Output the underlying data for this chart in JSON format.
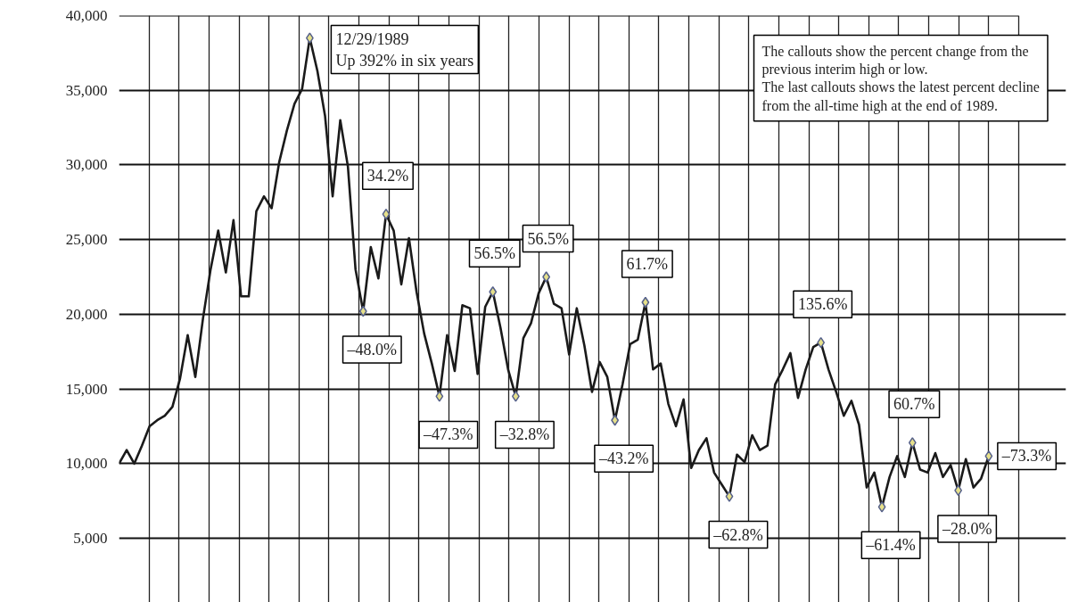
{
  "chart_data": {
    "type": "line",
    "categories": [
      null,
      null,
      null,
      null,
      null,
      null,
      null,
      null,
      null,
      null,
      null,
      null,
      null,
      null,
      null,
      null,
      null,
      null,
      null,
      null,
      null,
      null,
      null,
      null,
      null,
      null,
      null,
      null,
      null,
      null,
      null,
      null,
      null,
      null,
      null,
      null,
      null,
      null,
      null,
      null,
      null,
      null,
      null,
      null,
      null,
      null,
      null,
      null,
      null,
      null,
      null,
      null,
      null,
      null,
      null,
      null,
      null,
      null,
      null,
      null,
      null,
      null,
      null,
      null,
      null,
      null,
      null,
      null,
      null,
      null,
      null,
      null,
      null,
      null,
      null,
      null,
      null,
      null,
      null,
      null,
      null,
      null,
      null,
      null,
      null,
      null,
      null,
      null,
      null,
      null,
      null,
      null,
      null,
      null,
      null,
      null,
      null,
      null,
      null,
      null,
      null,
      null,
      null,
      null,
      null,
      null,
      null,
      null,
      null,
      null,
      null,
      null,
      null,
      null,
      null
    ],
    "series": [
      {
        "color": "#1a1a1a",
        "values": [
          10000,
          10900,
          10000,
          11200,
          12500,
          12900,
          13200,
          13800,
          15700,
          18600,
          15800,
          19700,
          23000,
          25600,
          22800,
          26300,
          21200,
          21200,
          26900,
          27900,
          27100,
          30200,
          32300,
          34100,
          35100,
          38500,
          36300,
          33300,
          27900,
          33000,
          29900,
          23000,
          20200,
          24500,
          22400,
          26700,
          25600,
          22000,
          25100,
          21500,
          18700,
          16700,
          14500,
          18600,
          16200,
          20600,
          20400,
          16000,
          20500,
          21500,
          19100,
          16300,
          14500,
          18400,
          19400,
          21400,
          22500,
          20700,
          20400,
          17300,
          20400,
          17900,
          14800,
          16800,
          15800,
          12900,
          15300,
          18000,
          18300,
          20800,
          16300,
          16700,
          14000,
          12500,
          14300,
          9700,
          10900,
          11700,
          9400,
          8600,
          7800,
          10600,
          10100,
          11900,
          10900,
          11200,
          15300,
          16300,
          17400,
          14400,
          16300,
          17800,
          18100,
          16300,
          14800,
          13200,
          14200,
          12600,
          8400,
          9400,
          7100,
          9100,
          10500,
          9100,
          11400,
          9600,
          9400,
          10700,
          9100,
          9900,
          8200,
          10300,
          8400,
          9000,
          10500
        ]
      },
      {
        "type": "scatter",
        "color": "#e6e08a",
        "marker": "diamond",
        "values": [
          null,
          null,
          null,
          null,
          null,
          null,
          null,
          null,
          null,
          null,
          null,
          null,
          null,
          null,
          null,
          null,
          null,
          null,
          null,
          null,
          null,
          null,
          null,
          null,
          null,
          38500,
          null,
          null,
          null,
          null,
          null,
          null,
          20200,
          null,
          null,
          26700,
          null,
          null,
          null,
          null,
          null,
          null,
          14500,
          null,
          null,
          null,
          null,
          null,
          null,
          21500,
          null,
          null,
          14500,
          null,
          null,
          null,
          22500,
          null,
          null,
          null,
          null,
          null,
          null,
          null,
          null,
          12900,
          null,
          null,
          null,
          20800,
          null,
          null,
          null,
          null,
          null,
          null,
          null,
          null,
          null,
          null,
          7800,
          null,
          null,
          null,
          null,
          null,
          null,
          null,
          null,
          null,
          null,
          null,
          18100,
          null,
          null,
          null,
          null,
          null,
          null,
          null,
          7100,
          null,
          null,
          null,
          11400,
          null,
          null,
          null,
          null,
          null,
          8200,
          null,
          null,
          null,
          10500
        ]
      }
    ],
    "ylim": [
      700,
      40000
    ],
    "yticks": [
      {
        "value": 5000,
        "label": "5,000"
      },
      {
        "value": 10000,
        "label": "10,000"
      },
      {
        "value": 15000,
        "label": "15,000"
      },
      {
        "value": 20000,
        "label": "20,000"
      },
      {
        "value": 25000,
        "label": "25,000"
      },
      {
        "value": 30000,
        "label": "30,000"
      },
      {
        "value": 35000,
        "label": "35,000"
      },
      {
        "value": 40000,
        "label": "40,000"
      }
    ],
    "tick_labels": "y",
    "grid": true,
    "annotations": [
      "12/29/1989\nUp 392% in six years",
      "–48.0%",
      "34.2%",
      "–47.3%",
      "56.5%",
      "–32.8%",
      "56.5%",
      "–43.2%",
      "61.7%",
      "–62.8%",
      "135.6%",
      "–61.4%",
      "60.7%",
      "–28.0%",
      "–73.3%",
      "The callouts show the percent change from the\nprevious interim high or low.\nThe last callouts shows the latest percent decline\nfrom the all-time high at the end of 1989."
    ]
  }
}
